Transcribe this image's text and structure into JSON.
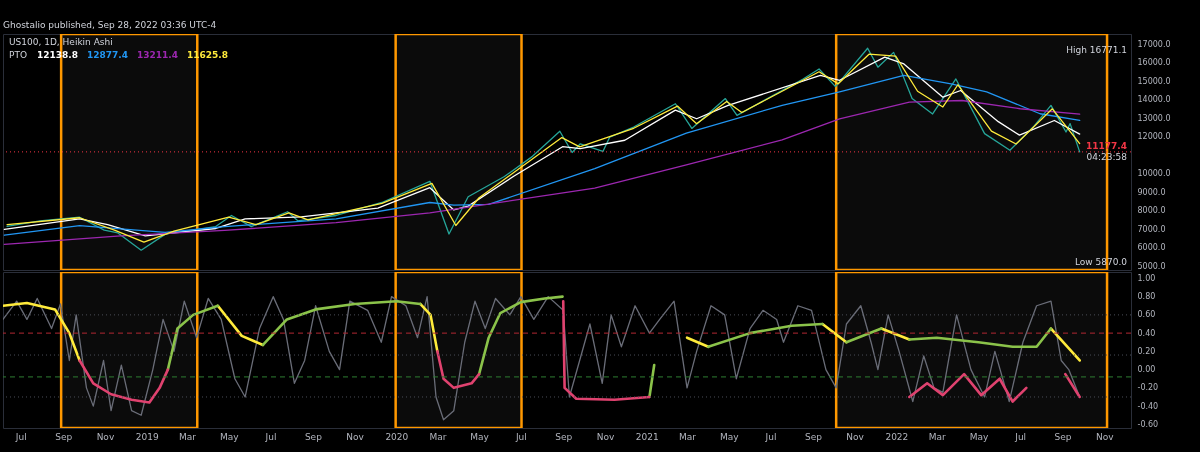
{
  "chart_data": [
    {
      "type": "line",
      "title": "US100, 1D, Heikin Ashi",
      "legend_title": "PTO",
      "tick_labels": "y",
      "xlim": [
        "2018-06-05",
        "2022-12-10"
      ],
      "ylim": [
        4800,
        17540
      ],
      "yticks": [
        {
          "value": 5000,
          "label": "5000.0"
        },
        {
          "value": 6000,
          "label": "6000.0"
        },
        {
          "value": 7000,
          "label": "7000.0"
        },
        {
          "value": 8000,
          "label": "8000.0"
        },
        {
          "value": 9000,
          "label": "9000.0"
        },
        {
          "value": 10000,
          "label": "10000.0"
        },
        {
          "value": 12000,
          "label": "12000.0"
        },
        {
          "value": 13000,
          "label": "13000.0"
        },
        {
          "value": 14000,
          "label": "14000.0"
        },
        {
          "value": 15000,
          "label": "15000.0"
        },
        {
          "value": 16000,
          "label": "16000.0"
        },
        {
          "value": 17000,
          "label": "17000.0"
        }
      ],
      "series": [
        {
          "color": "#26a69a",
          "x": [
            "2018-06-11",
            "2018-07-29",
            "2018-09-25",
            "2018-10-31",
            "2018-11-20",
            "2018-12-24",
            "2019-01-29",
            "2019-04-12",
            "2019-05-05",
            "2019-06-03",
            "2019-07-26",
            "2019-08-10",
            "2019-10-05",
            "2019-12-11",
            "2020-02-19",
            "2020-03-18",
            "2020-04-15",
            "2020-06-07",
            "2020-07-18",
            "2020-08-27",
            "2020-09-14",
            "2020-09-26",
            "2020-10-29",
            "2020-11-08",
            "2020-12-13",
            "2021-02-12",
            "2021-03-08",
            "2021-04-26",
            "2021-05-13",
            "2021-08-17",
            "2021-09-10",
            "2021-10-04",
            "2021-11-20",
            "2021-12-05",
            "2021-12-28",
            "2022-01-24",
            "2022-02-23",
            "2022-03-29",
            "2022-05-10",
            "2022-06-16",
            "2022-07-20",
            "2022-08-15",
            "2022-09-06",
            "2022-09-12",
            "2022-09-26"
          ],
          "values": [
            7150,
            7450,
            7650,
            6950,
            6800,
            5870,
            6750,
            7145,
            7743,
            7145,
            7945,
            7457,
            7743,
            8444,
            9587,
            6745,
            8756,
            9845,
            10935,
            12288,
            11145,
            11612,
            11200,
            11977,
            12517,
            13774,
            12444,
            14054,
            13150,
            15100,
            15650,
            14700,
            16771.1,
            15750,
            16548,
            14054,
            13223,
            15114,
            12163,
            11265,
            12517,
            13686,
            12252,
            12704,
            11177.4
          ]
        },
        {
          "name": "12138.8",
          "color": "#ffffff",
          "x": [
            "2018-06-07",
            "2018-09-25",
            "2018-11-05",
            "2018-12-30",
            "2019-04-12",
            "2019-05-25",
            "2019-08-15",
            "2019-12-05",
            "2020-02-19",
            "2020-03-25",
            "2020-04-15",
            "2020-06-20",
            "2020-08-31",
            "2020-09-26",
            "2020-11-30",
            "2021-02-12",
            "2021-03-15",
            "2021-04-30",
            "2021-09-12",
            "2021-10-10",
            "2021-12-15",
            "2022-01-12",
            "2022-03-10",
            "2022-04-05",
            "2022-05-30",
            "2022-06-30",
            "2022-08-20",
            "2022-09-26"
          ],
          "values": [
            6990,
            7561,
            7249,
            6647,
            7041,
            7561,
            7665,
            8143,
            9244,
            8044,
            8247,
            9845,
            11457,
            11353,
            11805,
            13431,
            12964,
            13690,
            15301,
            15041,
            16288,
            15925,
            14132,
            14490,
            12808,
            12080,
            12870,
            12138.8
          ]
        },
        {
          "name": "12877.4",
          "color": "#2196f3",
          "x": [
            "2018-06-07",
            "2018-09-25",
            "2019-01-28",
            "2019-04-25",
            "2019-10-05",
            "2020-02-19",
            "2020-03-25",
            "2020-05-15",
            "2020-10-17",
            "2021-02-28",
            "2021-07-18",
            "2021-10-10",
            "2022-01-12",
            "2022-03-22",
            "2022-05-13",
            "2022-07-30",
            "2022-09-26"
          ],
          "values": [
            6677,
            7197,
            6833,
            7145,
            7561,
            8444,
            8304,
            8340,
            10278,
            12184,
            13690,
            14418,
            15301,
            14849,
            14418,
            13234,
            12877.4
          ]
        },
        {
          "name": "13211.4",
          "color": "#9c27b0",
          "x": [
            "2018-06-07",
            "2018-11-24",
            "2019-04-25",
            "2019-10-05",
            "2020-02-19",
            "2020-10-17",
            "2021-02-28",
            "2021-07-18",
            "2021-10-10",
            "2022-01-20",
            "2022-04-07",
            "2022-07-01",
            "2022-09-26"
          ],
          "values": [
            6184,
            6647,
            6937,
            7353,
            7883,
            9220,
            10470,
            11821,
            12964,
            13862,
            13951,
            13504,
            13211.4
          ]
        },
        {
          "name": "11625.8",
          "color": "#ffeb3b",
          "x": [
            "2018-06-11",
            "2018-09-25",
            "2018-11-15",
            "2018-12-28",
            "2019-02-10",
            "2019-05-01",
            "2019-06-10",
            "2019-07-28",
            "2019-08-25",
            "2019-12-11",
            "2020-02-22",
            "2020-03-28",
            "2020-05-01",
            "2020-08-30",
            "2020-09-25",
            "2020-12-13",
            "2021-02-15",
            "2021-03-15",
            "2021-04-28",
            "2021-05-20",
            "2021-09-10",
            "2021-10-08",
            "2021-11-22",
            "2021-12-31",
            "2022-02-01",
            "2022-03-10",
            "2022-04-01",
            "2022-05-20",
            "2022-06-25",
            "2022-08-17",
            "2022-09-26"
          ],
          "values": [
            7250,
            7620,
            6950,
            6300,
            6900,
            7650,
            7250,
            7880,
            7500,
            8400,
            9480,
            7200,
            8700,
            11950,
            11450,
            12450,
            13650,
            12700,
            13900,
            13300,
            15500,
            14850,
            16450,
            16350,
            14450,
            13600,
            14800,
            12300,
            11600,
            13500,
            11625.8
          ]
        }
      ],
      "ref_lines": [
        {
          "axis": "y",
          "value": 11177.4,
          "label": "11177.4",
          "color": "#f23645",
          "line_style": "dotted"
        }
      ],
      "bands": [
        {
          "axis": "x",
          "from": "2018-08-29",
          "to": "2019-03-16",
          "color": "#ff9800"
        },
        {
          "axis": "x",
          "from": "2019-12-31",
          "to": "2020-07-02",
          "color": "#ff9800"
        },
        {
          "axis": "x",
          "from": "2021-10-05",
          "to": "2022-11-05",
          "color": "#ff9800"
        }
      ],
      "annotations": [
        "Ghostalio published, Sep 28, 2022 03:36 UTC-4",
        "High 16771.1",
        "Low 5870.0",
        {
          "text": "04:23:58",
          "y": 11177.4
        }
      ]
    },
    {
      "type": "line",
      "xlim": [
        "2018-06-05",
        "2022-12-10"
      ],
      "ylim": [
        -0.64,
        1.07
      ],
      "yticks": [
        {
          "value": -0.6,
          "label": "-0.60"
        },
        {
          "value": -0.4,
          "label": "-0.40"
        },
        {
          "value": -0.2,
          "label": "-0.20"
        },
        {
          "value": 0,
          "label": "0.00"
        },
        {
          "value": 0.2,
          "label": "0.20"
        },
        {
          "value": 0.4,
          "label": "0.40"
        },
        {
          "value": 0.6,
          "label": "0.60"
        },
        {
          "value": 0.8,
          "label": "0.80"
        },
        {
          "value": 1,
          "label": "1.00"
        }
      ],
      "xticks": [
        {
          "value": "2018-07-01",
          "label": "Jul"
        },
        {
          "value": "2018-09-01",
          "label": "Sep"
        },
        {
          "value": "2018-11-01",
          "label": "Nov"
        },
        {
          "value": "2019-01-01",
          "label": "2019"
        },
        {
          "value": "2019-03-01",
          "label": "Mar"
        },
        {
          "value": "2019-05-01",
          "label": "May"
        },
        {
          "value": "2019-07-01",
          "label": "Jul"
        },
        {
          "value": "2019-09-01",
          "label": "Sep"
        },
        {
          "value": "2019-11-01",
          "label": "Nov"
        },
        {
          "value": "2020-01-01",
          "label": "2020"
        },
        {
          "value": "2020-03-01",
          "label": "Mar"
        },
        {
          "value": "2020-05-01",
          "label": "May"
        },
        {
          "value": "2020-07-01",
          "label": "Jul"
        },
        {
          "value": "2020-09-01",
          "label": "Sep"
        },
        {
          "value": "2020-11-01",
          "label": "Nov"
        },
        {
          "value": "2021-01-01",
          "label": "2021"
        },
        {
          "value": "2021-03-01",
          "label": "Mar"
        },
        {
          "value": "2021-05-01",
          "label": "May"
        },
        {
          "value": "2021-07-01",
          "label": "Jul"
        },
        {
          "value": "2021-09-01",
          "label": "Sep"
        },
        {
          "value": "2021-11-01",
          "label": "Nov"
        },
        {
          "value": "2022-01-01",
          "label": "2022"
        },
        {
          "value": "2022-03-01",
          "label": "Mar"
        },
        {
          "value": "2022-05-01",
          "label": "May"
        },
        {
          "value": "2022-07-01",
          "label": "Jul"
        },
        {
          "value": "2022-09-01",
          "label": "Sep"
        },
        {
          "value": "2022-11-01",
          "label": "Nov"
        }
      ],
      "series": [
        {
          "color": "#6a6d78",
          "x": [
            "2018-06-05",
            "2018-06-25",
            "2018-07-10",
            "2018-07-25",
            "2018-08-15",
            "2018-08-28",
            "2018-09-10",
            "2018-09-20",
            "2018-10-05",
            "2018-10-15",
            "2018-10-30",
            "2018-11-10",
            "2018-11-25",
            "2018-12-10",
            "2018-12-24",
            "2019-01-10",
            "2019-01-25",
            "2019-02-10",
            "2019-02-25",
            "2019-03-15",
            "2019-04-01",
            "2019-04-20",
            "2019-05-10",
            "2019-05-25",
            "2019-06-15",
            "2019-07-05",
            "2019-07-20",
            "2019-08-05",
            "2019-08-20",
            "2019-09-05",
            "2019-09-25",
            "2019-10-10",
            "2019-10-25",
            "2019-11-20",
            "2019-12-10",
            "2019-12-25",
            "2020-01-15",
            "2020-02-01",
            "2020-02-15",
            "2020-02-28",
            "2020-03-10",
            "2020-03-25",
            "2020-04-10",
            "2020-04-25",
            "2020-05-10",
            "2020-05-25",
            "2020-06-15",
            "2020-07-01",
            "2020-07-20",
            "2020-08-10",
            "2020-09-01",
            "2020-09-10",
            "2020-09-25",
            "2020-10-10",
            "2020-10-28",
            "2020-11-10",
            "2020-11-25",
            "2020-12-15",
            "2021-01-05",
            "2021-01-20",
            "2021-02-10",
            "2021-03-01",
            "2021-03-15",
            "2021-04-05",
            "2021-04-25",
            "2021-05-12",
            "2021-06-01",
            "2021-06-20",
            "2021-07-10",
            "2021-07-20",
            "2021-08-10",
            "2021-08-30",
            "2021-09-20",
            "2021-10-05",
            "2021-10-20",
            "2021-11-10",
            "2021-11-25",
            "2021-12-05",
            "2021-12-20",
            "2022-01-05",
            "2022-01-25",
            "2022-02-10",
            "2022-02-25",
            "2022-03-10",
            "2022-03-30",
            "2022-04-20",
            "2022-05-10",
            "2022-05-25",
            "2022-06-15",
            "2022-07-05",
            "2022-07-25",
            "2022-08-15",
            "2022-08-30",
            "2022-09-10",
            "2022-09-26"
          ],
          "values": [
            0.55,
            0.75,
            0.55,
            0.78,
            0.45,
            0.72,
            0.1,
            0.6,
            -0.2,
            -0.4,
            0.1,
            -0.45,
            0.05,
            -0.45,
            -0.5,
            0,
            0.55,
            0.2,
            0.75,
            0.35,
            0.78,
            0.55,
            -0.1,
            -0.3,
            0.45,
            0.8,
            0.55,
            -0.15,
            0.1,
            0.7,
            0.2,
            0,
            0.75,
            0.65,
            0.3,
            0.8,
            0.7,
            0.35,
            0.8,
            -0.3,
            -0.55,
            -0.45,
            0.3,
            0.75,
            0.45,
            0.78,
            0.6,
            0.8,
            0.55,
            0.8,
            0.65,
            -0.3,
            0.1,
            0.5,
            -0.15,
            0.6,
            0.25,
            0.7,
            0.4,
            0.55,
            0.75,
            -0.2,
            0.2,
            0.7,
            0.6,
            -0.1,
            0.45,
            0.65,
            0.55,
            0.3,
            0.7,
            0.65,
            0,
            -0.2,
            0.5,
            0.7,
            0.3,
            0,
            0.6,
            0.2,
            -0.35,
            0.15,
            -0.2,
            -0.25,
            0.6,
            0,
            -0.3,
            0.2,
            -0.35,
            0.3,
            0.7,
            0.75,
            0.1,
            0,
            -0.3
          ]
        },
        {
          "color": "#ffeb3b",
          "x": [
            "2018-06-05",
            "2018-07-10",
            "2018-08-20",
            "2018-09-10",
            "2018-09-25",
            "2018-09-30",
            "2019-04-15",
            "2019-05-20",
            "2019-06-20",
            "2019-06-25",
            "2020-02-05",
            "2020-02-20",
            "2020-03-01",
            "2020-03-05",
            "2021-03-01",
            "2021-04-01",
            "2021-04-05",
            "2021-09-15",
            "2021-10-20",
            "2021-10-25",
            "2021-12-10",
            "2022-01-20",
            "2022-01-25",
            "2022-08-15",
            "2022-09-26"
          ],
          "values": [
            0.7,
            0.73,
            0.66,
            0.4,
            0.1,
            null,
            0.7,
            0.37,
            0.27,
            null,
            0.72,
            0.6,
            0.2,
            null,
            0.35,
            0.25,
            null,
            0.5,
            0.3,
            null,
            0.45,
            0.33,
            null,
            0.45,
            0.1
          ]
        },
        {
          "color": "#8bc34a",
          "x": [
            "2019-02-01",
            "2019-02-15",
            "2019-03-10",
            "2019-04-15",
            "2019-05-01",
            "2019-06-20",
            "2019-07-25",
            "2019-09-05",
            "2019-11-01",
            "2020-01-01",
            "2020-02-05",
            "2020-02-10",
            "2020-05-01",
            "2020-05-15",
            "2020-06-01",
            "2020-07-01",
            "2020-08-05",
            "2020-08-31",
            "2020-09-05",
            "2021-01-05",
            "2021-01-12",
            "2021-02-01",
            "2021-04-01",
            "2021-06-01",
            "2021-08-01",
            "2021-09-15",
            "2021-09-20",
            "2021-10-20",
            "2021-12-10",
            "2021-12-15",
            "2022-01-20",
            "2022-03-01",
            "2022-05-01",
            "2022-06-20",
            "2022-07-25",
            "2022-08-15"
          ],
          "values": [
            0,
            0.45,
            0.6,
            0.7,
            null,
            0.27,
            0.55,
            0.66,
            0.72,
            0.75,
            0.72,
            null,
            -0.05,
            0.35,
            0.62,
            0.74,
            0.78,
            0.8,
            null,
            -0.3,
            0.05,
            null,
            0.25,
            0.4,
            0.48,
            0.5,
            null,
            0.3,
            0.45,
            null,
            0.33,
            0.35,
            0.3,
            0.25,
            0.25,
            0.45
          ]
        },
        {
          "color": "#e0426f",
          "x": [
            "2018-09-25",
            "2018-10-15",
            "2018-11-10",
            "2018-12-10",
            "2019-01-05",
            "2019-01-20",
            "2019-02-01",
            "2019-02-10",
            "2020-03-01",
            "2020-03-10",
            "2020-03-25",
            "2020-04-20",
            "2020-05-01",
            "2020-05-10",
            "2020-09-01",
            "2020-09-03",
            "2020-09-20",
            "2020-11-15",
            "2021-01-05",
            "2021-01-10",
            "2022-01-20",
            "2022-02-15",
            "2022-03-10",
            "2022-04-10",
            "2022-05-05",
            "2022-06-01",
            "2022-06-20",
            "2022-07-10",
            "2022-07-20",
            "2022-09-05",
            "2022-09-26"
          ],
          "values": [
            0.1,
            -0.15,
            -0.27,
            -0.33,
            -0.36,
            -0.2,
            0,
            null,
            0.2,
            -0.1,
            -0.2,
            -0.15,
            -0.05,
            null,
            0.75,
            -0.2,
            -0.32,
            -0.33,
            -0.3,
            null,
            -0.3,
            -0.15,
            -0.28,
            -0.05,
            -0.28,
            -0.1,
            -0.35,
            -0.2,
            null,
            -0.05,
            -0.3
          ]
        }
      ],
      "ref_lines": [
        {
          "axis": "y",
          "value": 0.6,
          "color": "#4a4d57",
          "line_style": "dotted"
        },
        {
          "axis": "y",
          "value": 0.4,
          "color": "#b22833",
          "line_style": "dashed"
        },
        {
          "axis": "y",
          "value": 0.16,
          "color": "#4a4d57",
          "line_style": "dotted"
        },
        {
          "axis": "y",
          "value": -0.08,
          "color": "#2e7d32",
          "line_style": "dashed"
        },
        {
          "axis": "y",
          "value": -0.3,
          "color": "#4a4d57",
          "line_style": "dotted"
        }
      ],
      "bands": [
        {
          "axis": "x",
          "from": "2018-08-29",
          "to": "2019-03-16",
          "color": "#ff9800"
        },
        {
          "axis": "x",
          "from": "2019-12-31",
          "to": "2020-07-02",
          "color": "#ff9800"
        },
        {
          "axis": "x",
          "from": "2021-10-05",
          "to": "2022-11-05",
          "color": "#ff9800"
        }
      ]
    }
  ]
}
